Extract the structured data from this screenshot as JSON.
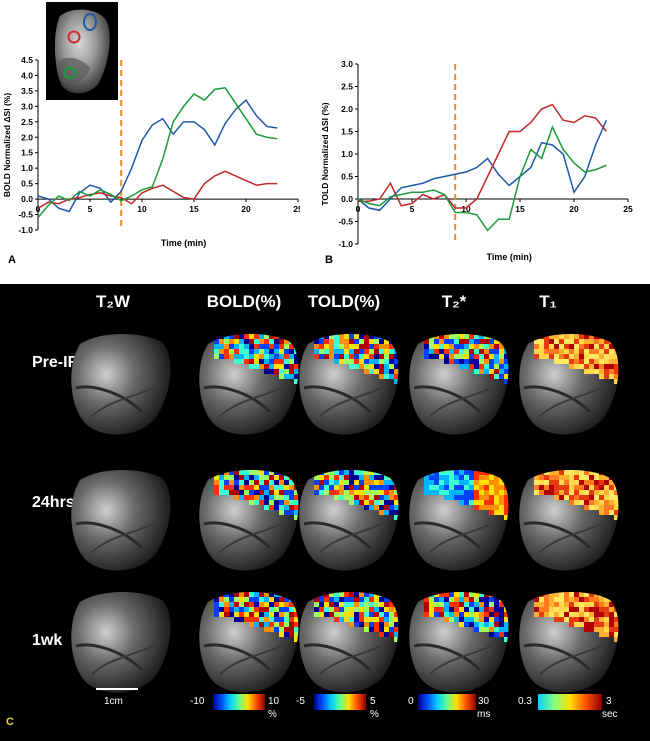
{
  "panels": {
    "a_letter": "A",
    "b_letter": "B",
    "c_letter": "C"
  },
  "inset": {
    "roi_colors": [
      "#1f5aa8",
      "#d02a2a",
      "#1c9a3c"
    ]
  },
  "chart_data": [
    {
      "type": "line",
      "panel": "A",
      "title": "",
      "xlabel": "Time (min)",
      "ylabel": "BOLD Normalized ΔSI (%)",
      "xlim": [
        0,
        25
      ],
      "ylim": [
        -1.0,
        4.5
      ],
      "xticks": [
        "0",
        "5",
        "10",
        "15",
        "20",
        "25"
      ],
      "yticks": [
        "-1.0",
        "-0.5",
        "0.0",
        "0.5",
        "1.0",
        "1.5",
        "2.0",
        "2.5",
        "3.0",
        "3.5",
        "4.0",
        "4.5"
      ],
      "event_line_x": 8,
      "x": [
        0,
        1,
        2,
        3,
        4,
        5,
        6,
        7,
        8,
        9,
        10,
        11,
        12,
        13,
        14,
        15,
        16,
        17,
        18,
        19,
        20,
        21,
        22,
        23
      ],
      "series": [
        {
          "name": "blue ROI",
          "color": "#1f5aa8",
          "values": [
            0.1,
            0.0,
            -0.3,
            -0.4,
            0.2,
            0.45,
            0.35,
            -0.1,
            0.25,
            1.0,
            1.9,
            2.4,
            2.6,
            2.1,
            2.5,
            2.5,
            2.25,
            1.75,
            2.45,
            2.9,
            3.2,
            2.7,
            2.35,
            2.3
          ]
        },
        {
          "name": "red ROI",
          "color": "#c0282a",
          "values": [
            -0.3,
            -0.1,
            -0.15,
            0.0,
            0.05,
            0.15,
            0.2,
            0.1,
            0.05,
            -0.15,
            0.2,
            0.35,
            0.45,
            0.25,
            0.05,
            0.0,
            0.5,
            0.75,
            0.9,
            0.75,
            0.6,
            0.45,
            0.5,
            0.5
          ]
        },
        {
          "name": "green ROI",
          "color": "#1c9a3c",
          "values": [
            -0.6,
            -0.2,
            0.1,
            -0.05,
            0.25,
            0.1,
            0.3,
            0.15,
            -0.05,
            0.1,
            0.3,
            0.4,
            1.3,
            2.5,
            3.0,
            3.4,
            3.2,
            3.55,
            3.6,
            3.1,
            2.6,
            2.1,
            2.0,
            1.95
          ]
        }
      ]
    },
    {
      "type": "line",
      "panel": "B",
      "title": "",
      "xlabel": "Time (min)",
      "ylabel": "TOLD Normalized ΔSI (%)",
      "xlim": [
        0,
        25
      ],
      "ylim": [
        -1.0,
        3.0
      ],
      "xticks": [
        "0",
        "5",
        "10",
        "15",
        "20",
        "25"
      ],
      "yticks": [
        "-1.0",
        "-0.5",
        "0.0",
        "0.5",
        "1.0",
        "1.5",
        "2.0",
        "2.5",
        "3.0"
      ],
      "event_line_x": 9,
      "x": [
        0,
        1,
        2,
        3,
        4,
        5,
        6,
        7,
        8,
        9,
        10,
        11,
        12,
        13,
        14,
        15,
        16,
        17,
        18,
        19,
        20,
        21,
        22,
        23
      ],
      "series": [
        {
          "name": "blue ROI",
          "color": "#1f5aa8",
          "values": [
            0.0,
            -0.2,
            -0.25,
            0.0,
            0.25,
            0.3,
            0.35,
            0.45,
            0.5,
            0.55,
            0.6,
            0.7,
            0.9,
            0.55,
            0.3,
            0.5,
            0.7,
            1.25,
            1.2,
            1.0,
            0.15,
            0.5,
            1.2,
            1.75
          ]
        },
        {
          "name": "red ROI",
          "color": "#c0282a",
          "values": [
            -0.05,
            -0.05,
            0.0,
            0.35,
            -0.15,
            -0.1,
            0.1,
            0.0,
            0.1,
            -0.2,
            -0.2,
            0.0,
            0.5,
            1.0,
            1.5,
            1.5,
            1.7,
            2.0,
            2.1,
            1.75,
            1.7,
            1.85,
            1.8,
            1.5
          ]
        },
        {
          "name": "green ROI",
          "color": "#1c9a3c",
          "values": [
            0.0,
            -0.1,
            -0.15,
            0.05,
            0.1,
            0.15,
            0.15,
            0.2,
            0.1,
            -0.3,
            -0.3,
            -0.35,
            -0.7,
            -0.45,
            -0.45,
            0.5,
            1.1,
            0.9,
            1.6,
            1.1,
            0.8,
            0.6,
            0.65,
            0.75
          ]
        }
      ]
    }
  ],
  "grid": {
    "columns": [
      "T₂W",
      "BOLD(%)",
      "TOLD(%)",
      "T₂*",
      "T₁"
    ],
    "rows": [
      "Pre-IR",
      "24hrs",
      "1wk"
    ]
  },
  "scale_bar": {
    "label": "1cm"
  },
  "colorbars": [
    {
      "min": "-10",
      "max": "10",
      "unit": "%"
    },
    {
      "min": "-5",
      "max": "5",
      "unit": "%"
    },
    {
      "min": "0",
      "max": "30",
      "unit": "ms"
    },
    {
      "min": "0.3",
      "max": "3",
      "unit": "sec"
    }
  ]
}
